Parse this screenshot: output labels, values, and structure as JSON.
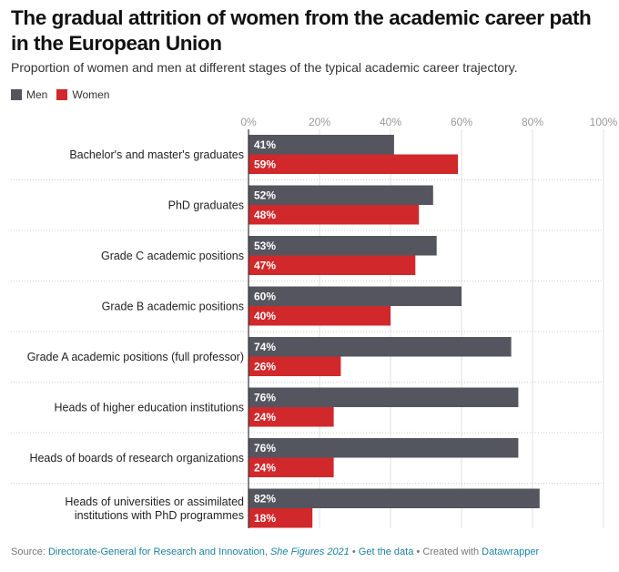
{
  "header": {
    "title": "The gradual attrition of women from the academic career path in the European Union",
    "subtitle": "Proportion of women and men at different stages of the typical academic career trajectory."
  },
  "legend": [
    {
      "label": "Men",
      "color": "#55555f"
    },
    {
      "label": "Women",
      "color": "#d1282b"
    }
  ],
  "chart_data": {
    "type": "bar",
    "orientation": "horizontal",
    "title": "The gradual attrition of women from the academic career path in the European Union",
    "categories": [
      "Bachelor's and master's graduates",
      "PhD graduates",
      "Grade C academic positions",
      "Grade B academic positions",
      "Grade A academic positions (full professor)",
      "Heads of higher education institutions",
      "Heads of boards of research organizations",
      "Heads of universities or assimilated institutions with PhD programmes"
    ],
    "series": [
      {
        "name": "Men",
        "color": "#55555f",
        "values": [
          41,
          52,
          53,
          60,
          74,
          76,
          76,
          82
        ]
      },
      {
        "name": "Women",
        "color": "#d1282b",
        "values": [
          59,
          48,
          47,
          40,
          26,
          24,
          24,
          18
        ]
      }
    ],
    "xlim": [
      0,
      100
    ],
    "xticks": [
      "0%",
      "20%",
      "40%",
      "60%",
      "80%",
      "100%"
    ],
    "xtick_values": [
      0,
      20,
      40,
      60,
      80,
      100
    ],
    "value_suffix": "%",
    "grid": true,
    "legend_position": "top-left"
  },
  "footer": {
    "source_label": "Source:",
    "source_link": "Directorate-General for Research and Innovation,",
    "source_title": "She Figures 2021",
    "separator": "•",
    "get_data": "Get the data",
    "created_with": "Created with",
    "tool": "Datawrapper"
  }
}
